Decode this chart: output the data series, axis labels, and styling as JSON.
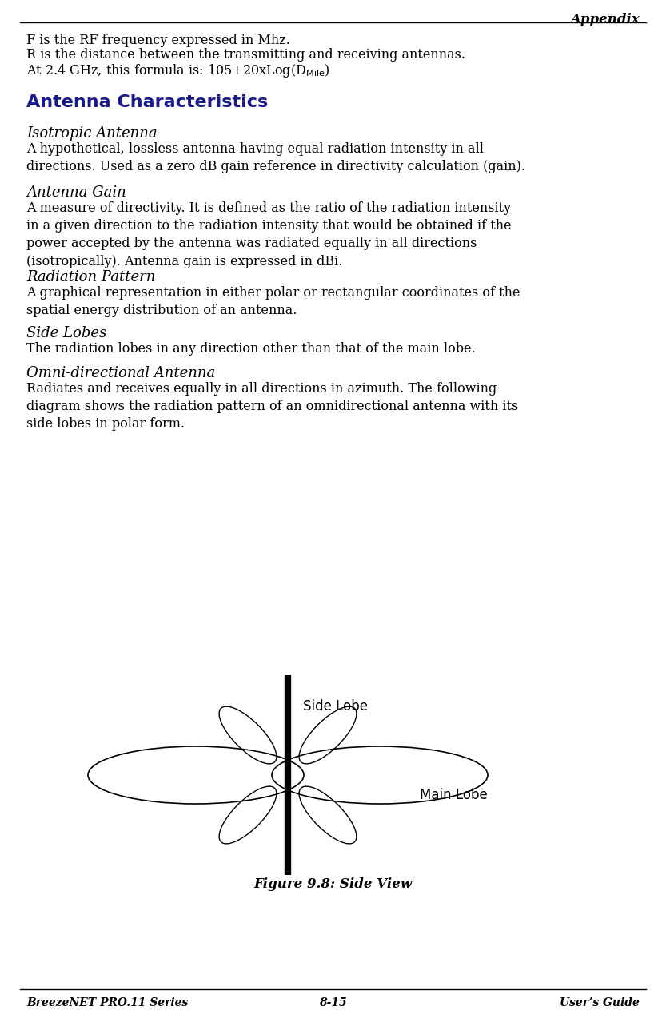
{
  "title_right": "Appendix",
  "footer_left": "BreezeNET PRO.11 Series",
  "footer_center": "8-15",
  "footer_right": "User’s Guide",
  "line1": "F is the RF frequency expressed in Mhz.",
  "line2": "R is the distance between the transmitting and receiving antennas.",
  "line3": "At 2.4 GHz, this formula is: 105+20xLog(D$_{\\mathrm{Mile}}$)",
  "section_title": "Antenna Characteristics",
  "sub1_title": "Isotropic Antenna",
  "sub1_body": "A hypothetical, lossless antenna having equal radiation intensity in all\ndirections. Used as a zero dB gain reference in directivity calculation (gain).",
  "sub2_title": "Antenna Gain",
  "sub2_body": "A measure of directivity. It is defined as the ratio of the radiation intensity\nin a given direction to the radiation intensity that would be obtained if the\npower accepted by the antenna was radiated equally in all directions\n(isotropically). Antenna gain is expressed in dBi.",
  "sub3_title": "Radiation Pattern",
  "sub3_body": "A graphical representation in either polar or rectangular coordinates of the\nspatial energy distribution of an antenna.",
  "sub4_title": "Side Lobes",
  "sub4_body": "The radiation lobes in any direction other than that of the main lobe.",
  "sub5_title": "Omni-directional Antenna",
  "sub5_body": "Radiates and receives equally in all directions in azimuth. The following\ndiagram shows the radiation pattern of an omnidirectional antenna with its\nside lobes in polar form.",
  "figure_caption": "Figure 9.8: Side View",
  "bg_color": "#ffffff",
  "text_color": "#000000",
  "section_title_color": "#1a1a8c",
  "body_font_size": 11.5,
  "sub_title_font_size": 13,
  "section_title_font_size": 16
}
